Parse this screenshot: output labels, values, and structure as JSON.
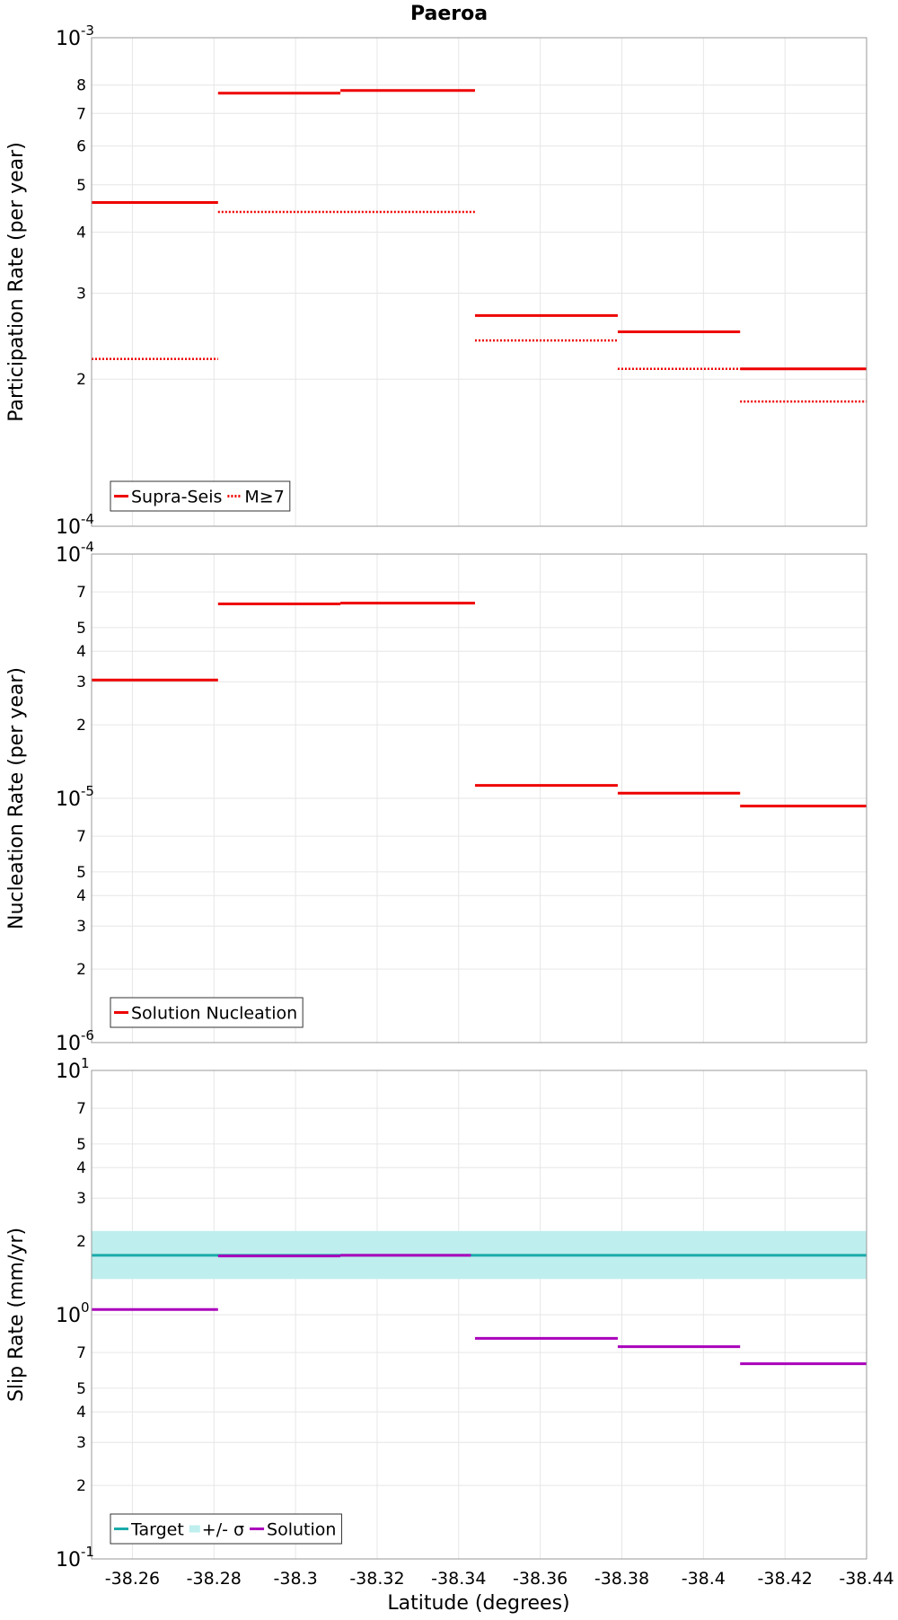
{
  "chart_data": {
    "title": "Paeroa",
    "xlabel": "Latitude (degrees)",
    "x_reversed": true,
    "xlim": [
      -38.25,
      -38.44
    ],
    "xticks": [
      -38.26,
      -38.28,
      -38.3,
      -38.32,
      -38.34,
      -38.36,
      -38.38,
      -38.4,
      -38.42,
      -38.44
    ],
    "xtick_labels": [
      "-38.26",
      "-38.28",
      "-38.3",
      "-38.32",
      "-38.34",
      "-38.36",
      "-38.38",
      "-38.4",
      "-38.42",
      "-38.44"
    ],
    "grid": true,
    "panels": [
      {
        "type": "line",
        "ylabel": "Participation Rate (per year)",
        "yscale": "log",
        "ylim": [
          0.0001,
          0.001
        ],
        "major_ticks": [
          {
            "value": 0.0001,
            "mantissa": "10",
            "exp": "-4"
          },
          {
            "value": 0.001,
            "mantissa": "10",
            "exp": "-3"
          }
        ],
        "minor_ticks": [
          {
            "value": 0.0002,
            "label": "2"
          },
          {
            "value": 0.0003,
            "label": "3"
          },
          {
            "value": 0.0004,
            "label": "4"
          },
          {
            "value": 0.0005,
            "label": "5"
          },
          {
            "value": 0.0006,
            "label": "6"
          },
          {
            "value": 0.0007,
            "label": "7"
          },
          {
            "value": 0.0008,
            "label": "8"
          }
        ],
        "legend": {
          "position": "bottom-left",
          "entries": [
            "Supra-Seis",
            "M≥7"
          ]
        },
        "series": [
          {
            "name": "Supra-Seis",
            "color": "#ee0000",
            "style": "solid",
            "segments": [
              {
                "x": [
                  -38.25,
                  -38.281
                ],
                "y": 0.00046
              },
              {
                "x": [
                  -38.281,
                  -38.311
                ],
                "y": 0.00077
              },
              {
                "x": [
                  -38.311,
                  -38.344
                ],
                "y": 0.00078
              },
              {
                "x": [
                  -38.344,
                  -38.379
                ],
                "y": 0.00027
              },
              {
                "x": [
                  -38.379,
                  -38.409
                ],
                "y": 0.00025
              },
              {
                "x": [
                  -38.409,
                  -38.44
                ],
                "y": 0.00021
              }
            ]
          },
          {
            "name": "M≥7",
            "color": "#ee0000",
            "style": "dotted",
            "segments": [
              {
                "x": [
                  -38.25,
                  -38.281
                ],
                "y": 0.00022
              },
              {
                "x": [
                  -38.281,
                  -38.344
                ],
                "y": 0.00044
              },
              {
                "x": [
                  -38.344,
                  -38.379
                ],
                "y": 0.00024
              },
              {
                "x": [
                  -38.379,
                  -38.409
                ],
                "y": 0.00021
              },
              {
                "x": [
                  -38.409,
                  -38.44
                ],
                "y": 0.00018
              }
            ]
          }
        ]
      },
      {
        "type": "line",
        "ylabel": "Nucleation Rate (per year)",
        "yscale": "log",
        "ylim": [
          1e-06,
          0.0001
        ],
        "major_ticks": [
          {
            "value": 1e-06,
            "mantissa": "10",
            "exp": "-6"
          },
          {
            "value": 1e-05,
            "mantissa": "10",
            "exp": "-5"
          },
          {
            "value": 0.0001,
            "mantissa": "10",
            "exp": "-4"
          }
        ],
        "minor_ticks": [
          {
            "value": 2e-06,
            "label": "2"
          },
          {
            "value": 3e-06,
            "label": "3"
          },
          {
            "value": 4e-06,
            "label": "4"
          },
          {
            "value": 5e-06,
            "label": "5"
          },
          {
            "value": 7e-06,
            "label": "7"
          },
          {
            "value": 2e-05,
            "label": "2"
          },
          {
            "value": 3e-05,
            "label": "3"
          },
          {
            "value": 4e-05,
            "label": "4"
          },
          {
            "value": 5e-05,
            "label": "5"
          },
          {
            "value": 7e-05,
            "label": "7"
          }
        ],
        "legend": {
          "position": "bottom-left",
          "entries": [
            "Solution Nucleation"
          ]
        },
        "series": [
          {
            "name": "Solution Nucleation",
            "color": "#ee0000",
            "style": "solid",
            "segments": [
              {
                "x": [
                  -38.25,
                  -38.281
                ],
                "y": 3.05e-05
              },
              {
                "x": [
                  -38.281,
                  -38.311
                ],
                "y": 6.25e-05
              },
              {
                "x": [
                  -38.311,
                  -38.344
                ],
                "y": 6.3e-05
              },
              {
                "x": [
                  -38.344,
                  -38.379
                ],
                "y": 1.13e-05
              },
              {
                "x": [
                  -38.379,
                  -38.409
                ],
                "y": 1.05e-05
              },
              {
                "x": [
                  -38.409,
                  -38.44
                ],
                "y": 9.3e-06
              }
            ]
          }
        ]
      },
      {
        "type": "line",
        "ylabel": "Slip Rate (mm/yr)",
        "yscale": "log",
        "ylim": [
          0.1,
          10
        ],
        "major_ticks": [
          {
            "value": 0.1,
            "mantissa": "10",
            "exp": "-1"
          },
          {
            "value": 1,
            "mantissa": "10",
            "exp": "0"
          },
          {
            "value": 10,
            "mantissa": "10",
            "exp": "1"
          }
        ],
        "minor_ticks": [
          {
            "value": 0.2,
            "label": "2"
          },
          {
            "value": 0.3,
            "label": "3"
          },
          {
            "value": 0.4,
            "label": "4"
          },
          {
            "value": 0.5,
            "label": "5"
          },
          {
            "value": 0.7,
            "label": "7"
          },
          {
            "value": 2,
            "label": "2"
          },
          {
            "value": 3,
            "label": "3"
          },
          {
            "value": 4,
            "label": "4"
          },
          {
            "value": 5,
            "label": "5"
          },
          {
            "value": 7,
            "label": "7"
          }
        ],
        "legend": {
          "position": "bottom-left",
          "entries": [
            "Target",
            "+/- σ",
            "Solution"
          ]
        },
        "band": {
          "name": "+/- σ",
          "color": "#bfeeee",
          "y": [
            1.4,
            2.2
          ],
          "x": [
            -38.25,
            -38.44
          ]
        },
        "series": [
          {
            "name": "Target",
            "color": "#1aaaaa",
            "style": "solid",
            "segments": [
              {
                "x": [
                  -38.25,
                  -38.44
                ],
                "y": 1.75
              }
            ]
          },
          {
            "name": "Solution",
            "color": "#aa00bb",
            "style": "solid",
            "segments": [
              {
                "x": [
                  -38.25,
                  -38.281
                ],
                "y": 1.05
              },
              {
                "x": [
                  -38.281,
                  -38.311
                ],
                "y": 1.74
              },
              {
                "x": [
                  -38.311,
                  -38.343
                ],
                "y": 1.75
              },
              {
                "x": [
                  -38.344,
                  -38.379
                ],
                "y": 0.8
              },
              {
                "x": [
                  -38.379,
                  -38.409
                ],
                "y": 0.74
              },
              {
                "x": [
                  -38.409,
                  -38.44
                ],
                "y": 0.63
              }
            ]
          }
        ]
      }
    ]
  }
}
